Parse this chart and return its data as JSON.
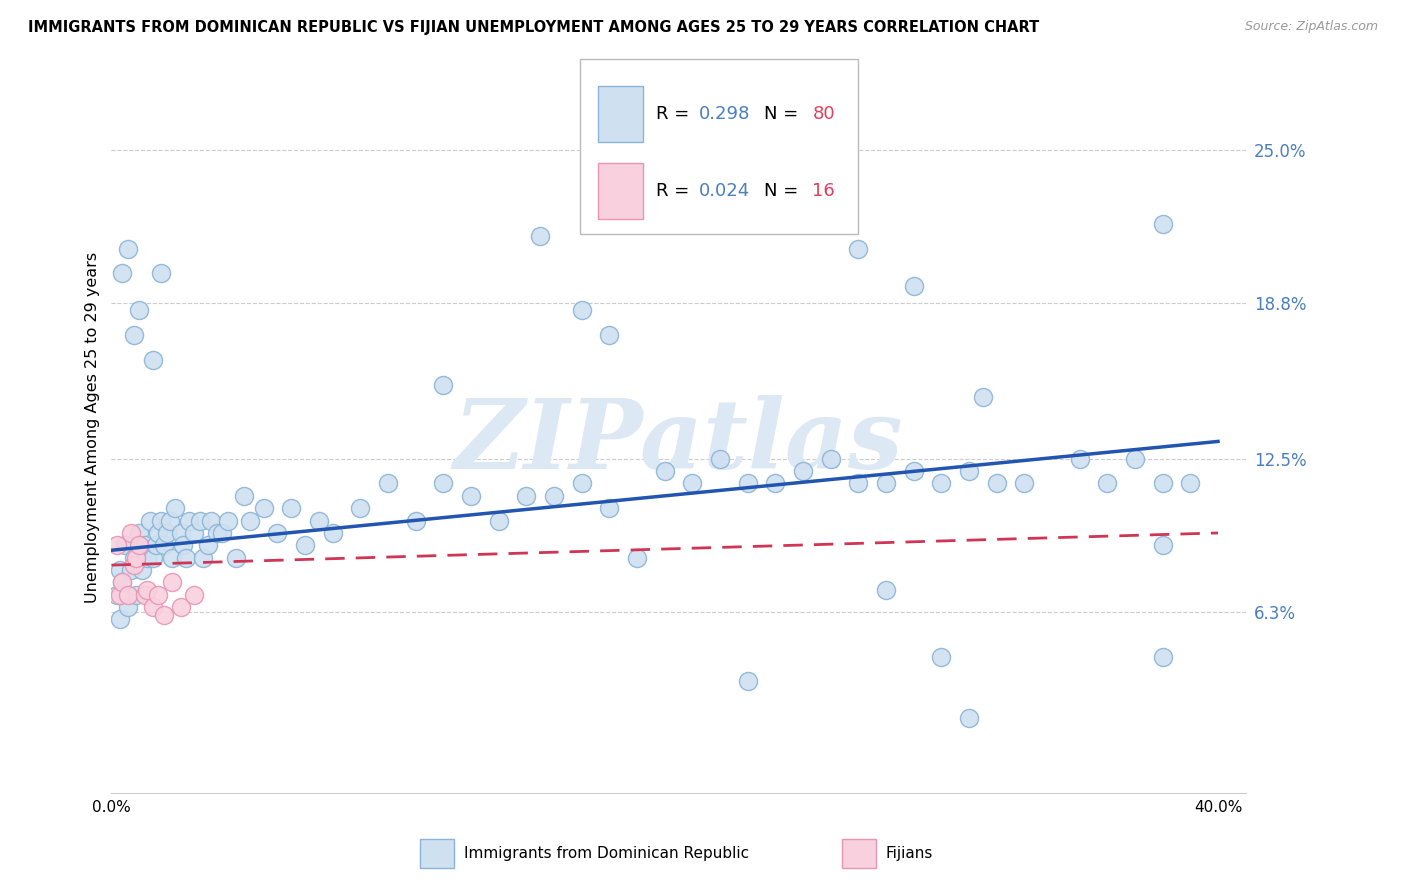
{
  "title": "IMMIGRANTS FROM DOMINICAN REPUBLIC VS FIJIAN UNEMPLOYMENT AMONG AGES 25 TO 29 YEARS CORRELATION CHART",
  "source": "Source: ZipAtlas.com",
  "ylabel": "Unemployment Among Ages 25 to 29 years",
  "y_tick_labels": [
    "25.0%",
    "18.8%",
    "12.5%",
    "6.3%"
  ],
  "y_tick_values": [
    0.25,
    0.188,
    0.125,
    0.063
  ],
  "xlim": [
    0.0,
    0.41
  ],
  "ylim": [
    -0.01,
    0.285
  ],
  "legend_r1_val": "0.298",
  "legend_n1_val": "80",
  "legend_r2_val": "0.024",
  "legend_n2_val": "16",
  "blue_color": "#cfe0f0",
  "blue_edge": "#8ab4d8",
  "pink_color": "#f9d0de",
  "pink_edge": "#e895b4",
  "line_blue": "#2255b0",
  "line_pink": "#d03555",
  "watermark": "ZIPatlas",
  "watermark_color": "#dde8f5",
  "grid_color": "#cccccc",
  "bottom_label1": "Immigrants from Dominican Republic",
  "bottom_label2": "Fijians",
  "r_color": "#4a7fc0",
  "n_color": "#e04060",
  "blue_x": [
    0.002,
    0.003,
    0.003,
    0.004,
    0.005,
    0.006,
    0.007,
    0.008,
    0.009,
    0.01,
    0.011,
    0.012,
    0.013,
    0.014,
    0.015,
    0.016,
    0.017,
    0.018,
    0.019,
    0.02,
    0.021,
    0.022,
    0.023,
    0.025,
    0.026,
    0.027,
    0.028,
    0.03,
    0.032,
    0.033,
    0.035,
    0.036,
    0.038,
    0.04,
    0.042,
    0.045,
    0.048,
    0.05,
    0.055,
    0.06,
    0.065,
    0.07,
    0.075,
    0.08,
    0.09,
    0.1,
    0.11,
    0.12,
    0.13,
    0.14,
    0.15,
    0.16,
    0.17,
    0.18,
    0.19,
    0.2,
    0.21,
    0.22,
    0.23,
    0.24,
    0.25,
    0.26,
    0.27,
    0.28,
    0.29,
    0.3,
    0.31,
    0.32,
    0.33,
    0.35,
    0.36,
    0.37,
    0.38,
    0.39,
    0.004,
    0.006,
    0.008,
    0.01,
    0.015,
    0.018
  ],
  "blue_y": [
    0.07,
    0.06,
    0.08,
    0.075,
    0.09,
    0.065,
    0.08,
    0.085,
    0.07,
    0.095,
    0.08,
    0.09,
    0.085,
    0.1,
    0.085,
    0.09,
    0.095,
    0.1,
    0.09,
    0.095,
    0.1,
    0.085,
    0.105,
    0.095,
    0.09,
    0.085,
    0.1,
    0.095,
    0.1,
    0.085,
    0.09,
    0.1,
    0.095,
    0.095,
    0.1,
    0.085,
    0.11,
    0.1,
    0.105,
    0.095,
    0.105,
    0.09,
    0.1,
    0.095,
    0.105,
    0.115,
    0.1,
    0.115,
    0.11,
    0.1,
    0.11,
    0.11,
    0.115,
    0.105,
    0.085,
    0.12,
    0.115,
    0.125,
    0.115,
    0.115,
    0.12,
    0.125,
    0.115,
    0.115,
    0.12,
    0.115,
    0.12,
    0.115,
    0.115,
    0.125,
    0.115,
    0.125,
    0.115,
    0.115,
    0.2,
    0.21,
    0.175,
    0.185,
    0.165,
    0.2
  ],
  "pink_x": [
    0.002,
    0.003,
    0.004,
    0.006,
    0.007,
    0.008,
    0.009,
    0.01,
    0.012,
    0.013,
    0.015,
    0.017,
    0.019,
    0.022,
    0.025,
    0.03
  ],
  "pink_y": [
    0.09,
    0.07,
    0.075,
    0.07,
    0.095,
    0.082,
    0.085,
    0.09,
    0.07,
    0.072,
    0.065,
    0.07,
    0.062,
    0.075,
    0.065,
    0.07
  ],
  "blue_line_start_y": 0.088,
  "blue_line_end_y": 0.132,
  "pink_line_start_y": 0.082,
  "pink_line_end_y": 0.095,
  "extra_blue_x": [
    0.155,
    0.27,
    0.38,
    0.38,
    0.28,
    0.315,
    0.12
  ],
  "extra_blue_y": [
    0.215,
    0.21,
    0.22,
    0.09,
    0.072,
    0.15,
    0.155
  ],
  "outlier_blue_x": [
    0.23,
    0.3,
    0.31,
    0.38,
    0.29,
    0.17,
    0.18
  ],
  "outlier_blue_y": [
    0.035,
    0.045,
    0.02,
    0.045,
    0.195,
    0.185,
    0.175
  ]
}
